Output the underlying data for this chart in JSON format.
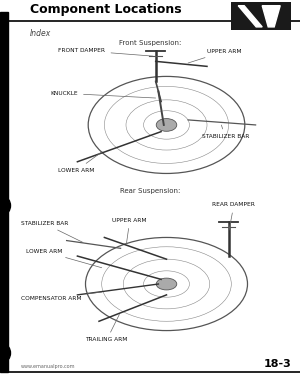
{
  "title": "Component Locations",
  "subtitle": "Index",
  "page_number": "18-3",
  "website": "www.emanualpro.com",
  "front_suspension_label": "Front Suspension:",
  "rear_suspension_label": "Rear Suspension:",
  "bg_color": "#ffffff",
  "title_color": "#000000",
  "text_color": "#333333",
  "line_color": "#000000",
  "icon_color": "#111111"
}
